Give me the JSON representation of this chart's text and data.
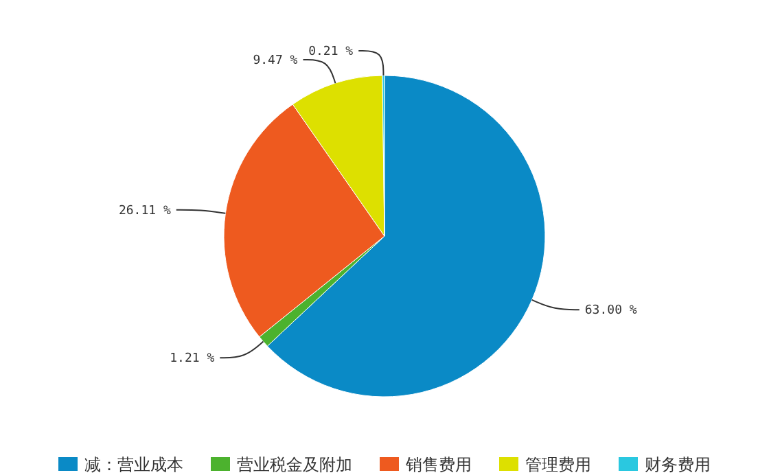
{
  "chart_data": {
    "type": "pie",
    "categories": [
      "减：营业成本",
      "营业税金及附加",
      "销售费用",
      "管理费用",
      "财务费用"
    ],
    "values": [
      63.0,
      1.21,
      26.11,
      9.47,
      0.21
    ],
    "value_labels": [
      "63.00 %",
      "1.21 %",
      "26.11 %",
      "9.47 %",
      "0.21 %"
    ],
    "colors": [
      "#0a8ac6",
      "#4cb22e",
      "#ee5a1f",
      "#dde000",
      "#2ac8e0"
    ],
    "legend": "bottom"
  }
}
